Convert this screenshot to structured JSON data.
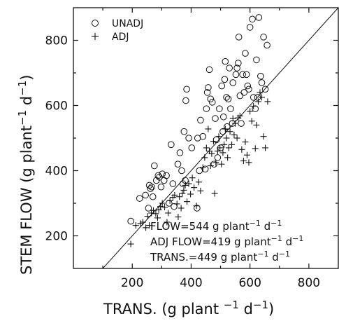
{
  "chart_data": {
    "type": "scatter",
    "xlabel": "TRANS. (g plant −1 d−1)",
    "ylabel": "STEM FLOW (g plant−1 d−1)",
    "xlim": [
      0,
      900
    ],
    "ylim": [
      100,
      900
    ],
    "xticks": [
      200,
      400,
      600,
      800
    ],
    "yticks": [
      200,
      400,
      600,
      800
    ],
    "grid": false,
    "legend_position": "top-left",
    "reference_line": "1:1",
    "series": [
      {
        "name": "UNADJ",
        "marker": "circle",
        "points": [
          [
            195,
            245
          ],
          [
            225,
            315
          ],
          [
            245,
            325
          ],
          [
            255,
            285
          ],
          [
            258,
            355
          ],
          [
            262,
            345
          ],
          [
            266,
            350
          ],
          [
            270,
            320
          ],
          [
            275,
            415
          ],
          [
            282,
            370
          ],
          [
            288,
            385
          ],
          [
            292,
            380
          ],
          [
            298,
            350
          ],
          [
            302,
            390
          ],
          [
            308,
            370
          ],
          [
            316,
            385
          ],
          [
            325,
            300
          ],
          [
            332,
            480
          ],
          [
            338,
            360
          ],
          [
            342,
            290
          ],
          [
            355,
            420
          ],
          [
            362,
            455
          ],
          [
            368,
            400
          ],
          [
            372,
            360
          ],
          [
            376,
            520
          ],
          [
            380,
            370
          ],
          [
            382,
            615
          ],
          [
            385,
            650
          ],
          [
            392,
            500
          ],
          [
            402,
            470
          ],
          [
            420,
            285
          ],
          [
            422,
            500
          ],
          [
            428,
            400
          ],
          [
            432,
            555
          ],
          [
            440,
            505
          ],
          [
            448,
            405
          ],
          [
            452,
            590
          ],
          [
            455,
            640
          ],
          [
            458,
            655
          ],
          [
            462,
            710
          ],
          [
            466,
            620
          ],
          [
            472,
            610
          ],
          [
            478,
            420
          ],
          [
            482,
            560
          ],
          [
            486,
            495
          ],
          [
            490,
            440
          ],
          [
            496,
            590
          ],
          [
            500,
            470
          ],
          [
            504,
            660
          ],
          [
            508,
            520
          ],
          [
            510,
            565
          ],
          [
            514,
            680
          ],
          [
            516,
            735
          ],
          [
            520,
            625
          ],
          [
            522,
            535
          ],
          [
            526,
            620
          ],
          [
            530,
            715
          ],
          [
            534,
            590
          ],
          [
            540,
            545
          ],
          [
            542,
            670
          ],
          [
            552,
            695
          ],
          [
            556,
            715
          ],
          [
            560,
            730
          ],
          [
            562,
            810
          ],
          [
            566,
            630
          ],
          [
            570,
            545
          ],
          [
            575,
            695
          ],
          [
            580,
            640
          ],
          [
            584,
            760
          ],
          [
            588,
            695
          ],
          [
            592,
            660
          ],
          [
            596,
            650
          ],
          [
            600,
            840
          ],
          [
            608,
            865
          ],
          [
            612,
            625
          ],
          [
            618,
            590
          ],
          [
            622,
            740
          ],
          [
            626,
            625
          ],
          [
            630,
            870
          ],
          [
            636,
            690
          ],
          [
            640,
            670
          ],
          [
            646,
            810
          ],
          [
            652,
            650
          ],
          [
            658,
            785
          ]
        ]
      },
      {
        "name": "ADJ",
        "marker": "plus",
        "points": [
          [
            195,
            175
          ],
          [
            212,
            232
          ],
          [
            228,
            238
          ],
          [
            236,
            242
          ],
          [
            246,
            225
          ],
          [
            252,
            260
          ],
          [
            258,
            232
          ],
          [
            265,
            270
          ],
          [
            272,
            278
          ],
          [
            280,
            268
          ],
          [
            286,
            255
          ],
          [
            290,
            280
          ],
          [
            296,
            290
          ],
          [
            302,
            300
          ],
          [
            310,
            288
          ],
          [
            318,
            242
          ],
          [
            322,
            270
          ],
          [
            328,
            308
          ],
          [
            338,
            318
          ],
          [
            344,
            325
          ],
          [
            352,
            298
          ],
          [
            356,
            258
          ],
          [
            360,
            320
          ],
          [
            366,
            285
          ],
          [
            370,
            330
          ],
          [
            375,
            340
          ],
          [
            380,
            355
          ],
          [
            386,
            305
          ],
          [
            392,
            360
          ],
          [
            398,
            328
          ],
          [
            404,
            378
          ],
          [
            410,
            348
          ],
          [
            418,
            292
          ],
          [
            426,
            365
          ],
          [
            432,
            338
          ],
          [
            440,
            410
          ],
          [
            446,
            440
          ],
          [
            452,
            470
          ],
          [
            458,
            528
          ],
          [
            462,
            460
          ],
          [
            466,
            415
          ],
          [
            470,
            452
          ],
          [
            476,
            490
          ],
          [
            480,
            330
          ],
          [
            484,
            425
          ],
          [
            490,
            460
          ],
          [
            494,
            505
          ],
          [
            498,
            470
          ],
          [
            503,
            420
          ],
          [
            508,
            455
          ],
          [
            512,
            480
          ],
          [
            516,
            528
          ],
          [
            520,
            500
          ],
          [
            524,
            440
          ],
          [
            528,
            470
          ],
          [
            532,
            520
          ],
          [
            538,
            480
          ],
          [
            542,
            560
          ],
          [
            546,
            510
          ],
          [
            550,
            545
          ],
          [
            556,
            500
          ],
          [
            560,
            562
          ],
          [
            566,
            568
          ],
          [
            572,
            465
          ],
          [
            578,
            430
          ],
          [
            584,
            488
          ],
          [
            590,
            448
          ],
          [
            596,
            425
          ],
          [
            600,
            582
          ],
          [
            606,
            552
          ],
          [
            612,
            598
          ],
          [
            618,
            468
          ],
          [
            622,
            540
          ],
          [
            628,
            612
          ],
          [
            634,
            640
          ],
          [
            640,
            625
          ],
          [
            646,
            505
          ],
          [
            652,
            470
          ],
          [
            660,
            612
          ]
        ]
      }
    ]
  },
  "legend": {
    "items": [
      {
        "label": "UNADJ",
        "marker": "circle"
      },
      {
        "label": "ADJ",
        "marker": "plus"
      }
    ]
  },
  "annotations": {
    "flow": {
      "text": "FLOW=544 g plant",
      "sup1": "−1",
      "mid": " d",
      "sup2": "−1"
    },
    "adj_flow": {
      "text": "ADJ FLOW=419 g plant",
      "sup1": "−1",
      "mid": " d",
      "sup2": "−1"
    },
    "trans": {
      "text": "TRANS.=449 g plant",
      "sup1": "−1",
      "mid": " d",
      "sup2": "−1"
    }
  },
  "axis_titles": {
    "x_main": "TRANS. (g plant ",
    "x_sup1": "−1",
    "x_mid": " d",
    "x_sup2": "−1",
    "x_end": ")",
    "y_main": "STEM FLOW (g plant",
    "y_sup1": "−1",
    "y_mid": " d",
    "y_sup2": "−1",
    "y_end": ")"
  }
}
